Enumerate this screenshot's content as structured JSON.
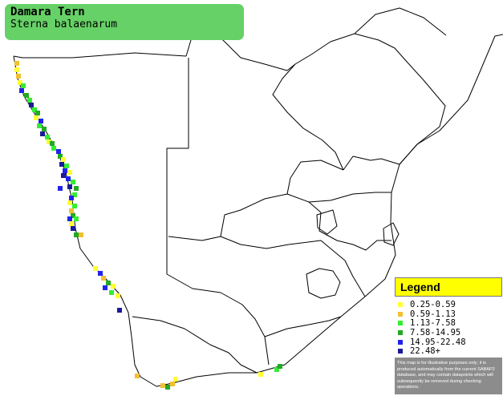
{
  "species": {
    "common_name": "Damara Tern",
    "scientific_name": "Sterna balaenarum"
  },
  "legend": {
    "title": "Legend",
    "items": [
      {
        "label": "0.25-0.59",
        "color": "#ffff33"
      },
      {
        "label": "0.59-1.13",
        "color": "#f2c030"
      },
      {
        "label": "1.13-7.58",
        "color": "#33ee33"
      },
      {
        "label": "7.58-14.95",
        "color": "#22aa22"
      },
      {
        "label": "14.95-22.48",
        "color": "#2222ee"
      },
      {
        "label": "22.48+",
        "color": "#1a1a99"
      }
    ],
    "disclaimer": "This map is for illustrative purposes only; it is produced automatically from the current SABAP2 database, and may contain datapoints which will subsequently be removed during checking operations."
  },
  "map": {
    "colors": {
      "background": "#ffffff",
      "border_line": "#000000"
    }
  }
}
